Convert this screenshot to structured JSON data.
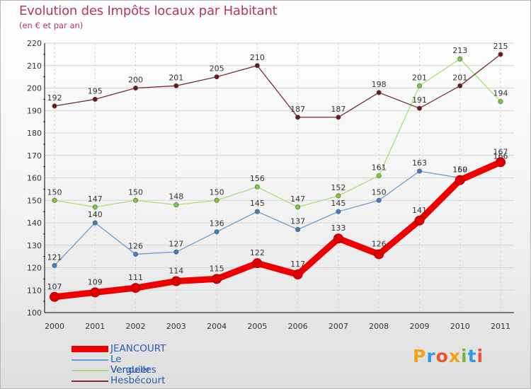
{
  "header": {
    "title": "Evolution des Impôts locaux par Habitant",
    "subtitle": "(en € et par an)"
  },
  "logo": {
    "letters": [
      "P",
      "r",
      "o",
      "x",
      "i",
      "t",
      "i"
    ],
    "colors": [
      "#f0a21b",
      "#2c9be0",
      "#e8552d",
      "#f0a21b",
      "#7cb342",
      "#2c9be0",
      "#e8552d"
    ]
  },
  "chart_data": {
    "type": "line",
    "title": "Evolution des Impôts locaux par Habitant",
    "subtitle": "(en € et par an)",
    "xlabel": "",
    "ylabel": "",
    "ylim": [
      100,
      220
    ],
    "yticks": [
      100,
      110,
      120,
      130,
      140,
      150,
      160,
      170,
      180,
      190,
      200,
      210,
      220
    ],
    "grid": true,
    "legend_position": "bottom-left",
    "x": [
      "2000",
      "2001",
      "2002",
      "2003",
      "2004",
      "2005",
      "2006",
      "2007",
      "2008",
      "2009",
      "2010",
      "2011"
    ],
    "series": [
      {
        "name": "JEANCOURT",
        "color": "#ee0000",
        "marker_color": "#dd0000",
        "emphasis": "thick",
        "values": [
          107,
          109,
          111,
          114,
          115,
          122,
          117,
          133,
          126,
          141,
          159,
          167
        ]
      },
      {
        "name": "Le Verguier",
        "color": "#6a9ccd",
        "marker_color": "#3c7fc4",
        "emphasis": "thin",
        "values": [
          121,
          140,
          126,
          127,
          136,
          145,
          137,
          145,
          150,
          163,
          160,
          166
        ]
      },
      {
        "name": "Vendelles",
        "color": "#a6e075",
        "marker_color": "#79cb3f",
        "emphasis": "thin",
        "values": [
          150,
          147,
          150,
          148,
          150,
          156,
          147,
          152,
          161,
          201,
          213,
          194
        ]
      },
      {
        "name": "Hesbécourt",
        "color": "#7a2d2d",
        "marker_color": "#6a1818",
        "emphasis": "thin",
        "values": [
          192,
          195,
          200,
          201,
          205,
          210,
          187,
          187,
          198,
          191,
          201,
          215
        ]
      }
    ]
  }
}
